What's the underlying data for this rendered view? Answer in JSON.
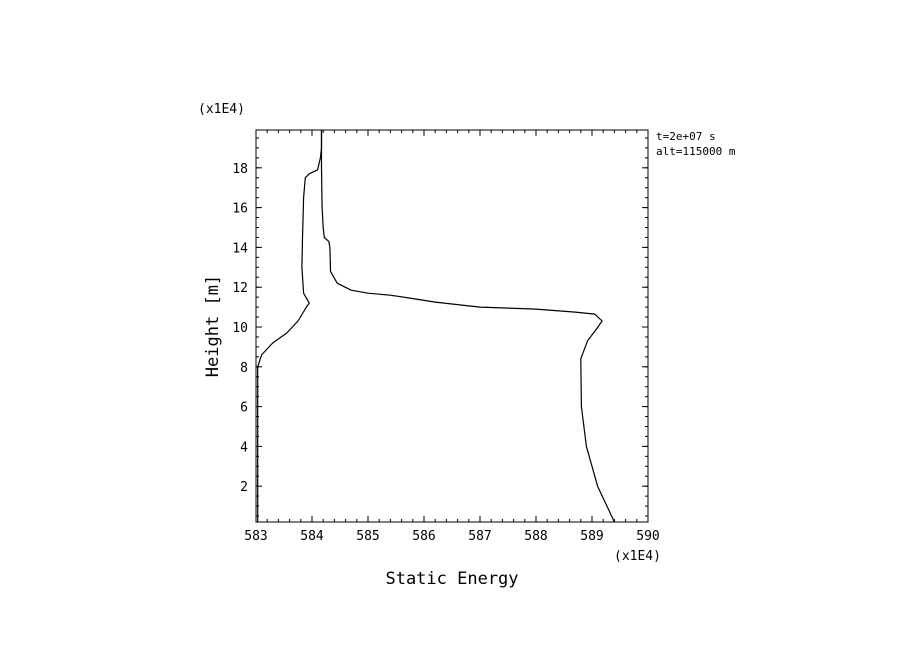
{
  "chart_data": {
    "type": "line",
    "title": "",
    "xlabel": "Static Energy",
    "ylabel": "Height [m]",
    "x_multiplier_label": "(x1E4)",
    "y_multiplier_label": "(x1E4)",
    "annotations": [
      "t=2e+07 s",
      "alt=115000 m"
    ],
    "xlim": [
      583,
      590
    ],
    "ylim": [
      0.2,
      19.9
    ],
    "x_ticks": [
      583,
      584,
      585,
      586,
      587,
      588,
      589,
      590
    ],
    "y_ticks": [
      2,
      4,
      6,
      8,
      10,
      12,
      14,
      16,
      18
    ],
    "grid": false,
    "series": [
      {
        "color": "#000000",
        "points": [
          [
            583.03,
            0.2
          ],
          [
            583.03,
            2.0
          ],
          [
            583.03,
            4.0
          ],
          [
            583.03,
            6.0
          ],
          [
            583.03,
            8.0
          ],
          [
            583.1,
            8.6
          ],
          [
            583.3,
            9.2
          ],
          [
            583.55,
            9.7
          ],
          [
            583.75,
            10.3
          ],
          [
            583.9,
            11.0
          ],
          [
            583.95,
            11.2
          ],
          [
            583.85,
            11.7
          ],
          [
            583.82,
            13.0
          ],
          [
            583.83,
            14.5
          ],
          [
            583.85,
            16.5
          ],
          [
            583.88,
            17.5
          ],
          [
            583.95,
            17.7
          ],
          [
            584.1,
            17.9
          ],
          [
            584.15,
            18.5
          ],
          [
            584.17,
            19.0
          ],
          [
            584.17,
            19.9
          ]
        ]
      },
      {
        "color": "#000000",
        "points": [
          [
            584.17,
            19.9
          ],
          [
            584.17,
            18.0
          ],
          [
            584.18,
            16.0
          ],
          [
            584.2,
            15.0
          ],
          [
            584.22,
            14.5
          ],
          [
            584.3,
            14.3
          ],
          [
            584.32,
            14.0
          ],
          [
            584.33,
            12.8
          ],
          [
            584.45,
            12.2
          ],
          [
            584.7,
            11.85
          ],
          [
            585.0,
            11.7
          ],
          [
            585.4,
            11.6
          ],
          [
            585.75,
            11.45
          ],
          [
            586.2,
            11.25
          ],
          [
            587.0,
            11.0
          ],
          [
            588.0,
            10.9
          ],
          [
            588.7,
            10.75
          ],
          [
            589.05,
            10.65
          ],
          [
            589.18,
            10.3
          ],
          [
            589.08,
            9.9
          ],
          [
            588.92,
            9.3
          ],
          [
            588.8,
            8.4
          ],
          [
            588.81,
            6.0
          ],
          [
            588.9,
            4.0
          ],
          [
            589.1,
            2.0
          ],
          [
            589.4,
            0.2
          ]
        ]
      }
    ]
  }
}
